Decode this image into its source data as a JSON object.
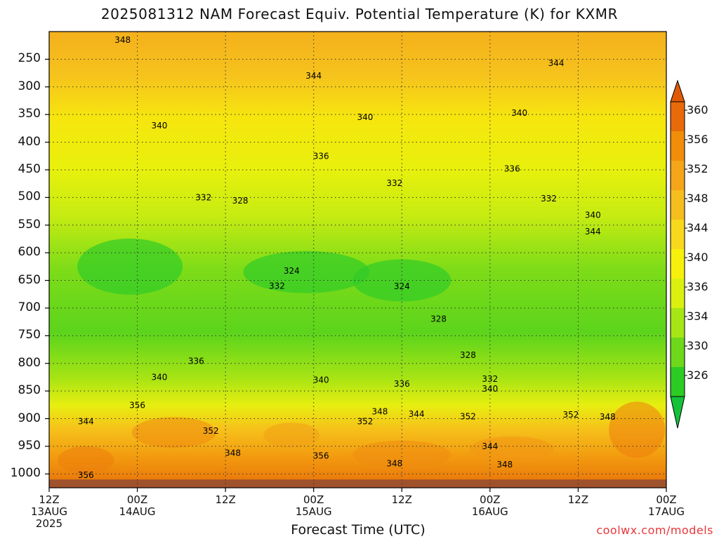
{
  "chart_data": {
    "type": "heatmap",
    "title": "2025081312 NAM Forecast Equiv. Potential Temperature (K) for KXMR",
    "xlabel": "Forecast Time (UTC)",
    "ylabel": "",
    "credit": "coolwx.com/models",
    "x_ticks": [
      {
        "line1": "12Z",
        "line2": "13AUG",
        "line3": "2025"
      },
      {
        "line1": "00Z",
        "line2": "14AUG",
        "line3": ""
      },
      {
        "line1": "12Z",
        "line2": "",
        "line3": ""
      },
      {
        "line1": "00Z",
        "line2": "15AUG",
        "line3": ""
      },
      {
        "line1": "12Z",
        "line2": "",
        "line3": ""
      },
      {
        "line1": "00Z",
        "line2": "16AUG",
        "line3": ""
      },
      {
        "line1": "12Z",
        "line2": "",
        "line3": ""
      },
      {
        "line1": "00Z",
        "line2": "17AUG",
        "line3": ""
      }
    ],
    "x_range_hours": [
      0,
      84
    ],
    "y_axis": "pressure (hPa), reversed",
    "y_ticks": [
      250,
      300,
      350,
      400,
      450,
      500,
      550,
      600,
      650,
      700,
      750,
      800,
      850,
      900,
      950,
      1000
    ],
    "ylim": [
      200,
      1025
    ],
    "grid": true,
    "colorbar": {
      "labels": [
        360,
        356,
        352,
        348,
        344,
        340,
        336,
        334,
        330,
        326
      ],
      "colors": [
        "#e86a08",
        "#f08d0a",
        "#f4a51a",
        "#f6bd1e",
        "#f8d81c",
        "#f6f00c",
        "#dcf010",
        "#a6e614",
        "#6ed81a",
        "#2ccc24"
      ],
      "max_arrow_color": "#e05a06",
      "min_arrow_color": "#14c23a"
    },
    "contour_labels": [
      {
        "text": "348",
        "hour": 10,
        "p": 215
      },
      {
        "text": "344",
        "hour": 36,
        "p": 280
      },
      {
        "text": "344",
        "hour": 69,
        "p": 257
      },
      {
        "text": "340",
        "hour": 15,
        "p": 370
      },
      {
        "text": "340",
        "hour": 43,
        "p": 355
      },
      {
        "text": "340",
        "hour": 64,
        "p": 347
      },
      {
        "text": "336",
        "hour": 37,
        "p": 425
      },
      {
        "text": "336",
        "hour": 63,
        "p": 448
      },
      {
        "text": "332",
        "hour": 21,
        "p": 500
      },
      {
        "text": "332",
        "hour": 47,
        "p": 474
      },
      {
        "text": "332",
        "hour": 68,
        "p": 502
      },
      {
        "text": "328",
        "hour": 26,
        "p": 506
      },
      {
        "text": "324",
        "hour": 33,
        "p": 633
      },
      {
        "text": "324",
        "hour": 48,
        "p": 661
      },
      {
        "text": "332",
        "hour": 31,
        "p": 660
      },
      {
        "text": "328",
        "hour": 53,
        "p": 720
      },
      {
        "text": "328",
        "hour": 57,
        "p": 785
      },
      {
        "text": "336",
        "hour": 20,
        "p": 796
      },
      {
        "text": "340",
        "hour": 15,
        "p": 825
      },
      {
        "text": "332",
        "hour": 60,
        "p": 828
      },
      {
        "text": "340",
        "hour": 37,
        "p": 830
      },
      {
        "text": "336",
        "hour": 48,
        "p": 837
      },
      {
        "text": "340",
        "hour": 60,
        "p": 846
      },
      {
        "text": "340",
        "hour": 74,
        "p": 532
      },
      {
        "text": "344",
        "hour": 74,
        "p": 562
      },
      {
        "text": "356",
        "hour": 12,
        "p": 876
      },
      {
        "text": "344",
        "hour": 5,
        "p": 905
      },
      {
        "text": "348",
        "hour": 45,
        "p": 887
      },
      {
        "text": "344",
        "hour": 50,
        "p": 892
      },
      {
        "text": "352",
        "hour": 57,
        "p": 896
      },
      {
        "text": "352",
        "hour": 43,
        "p": 905
      },
      {
        "text": "352",
        "hour": 22,
        "p": 922
      },
      {
        "text": "352",
        "hour": 71,
        "p": 893
      },
      {
        "text": "348",
        "hour": 76,
        "p": 897
      },
      {
        "text": "348",
        "hour": 25,
        "p": 962
      },
      {
        "text": "356",
        "hour": 37,
        "p": 967
      },
      {
        "text": "348",
        "hour": 47,
        "p": 981
      },
      {
        "text": "344",
        "hour": 60,
        "p": 950
      },
      {
        "text": "348",
        "hour": 62,
        "p": 983
      },
      {
        "text": "356",
        "hour": 5,
        "p": 1002
      }
    ]
  }
}
